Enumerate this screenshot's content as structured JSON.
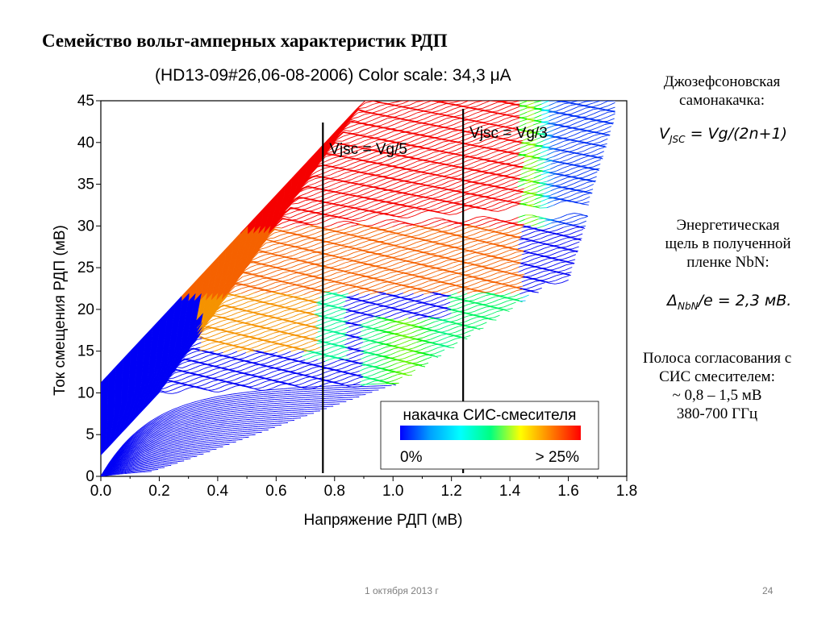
{
  "slide": {
    "title": "Семейство вольт-амперных характеристик РДП",
    "page_number": "24",
    "date": "1 октября 2013 г"
  },
  "sidebar": {
    "josephson_heading_line1": "Джозефсоновская",
    "josephson_heading_line2": "самонакачка:",
    "josephson_formula_main": "V",
    "josephson_formula_sub": "JSC",
    "josephson_formula_rest": " = Vg/(2n+1)",
    "gap_line1": "Энергетическая",
    "gap_line2": "щель в полученной",
    "gap_line3": "пленке NbN:",
    "gap_formula_main": "Δ",
    "gap_formula_sub": "NbN",
    "gap_formula_rest": "/e = 2,3 мВ.",
    "band_line1": "Полоса согласования с",
    "band_line2": "СИС смесителем:",
    "band_line3": "~ 0,8 – 1,5 мВ",
    "band_line4": "380-700 ГГц"
  },
  "chart_data": {
    "type": "line",
    "title": "(HD13-09#26,06-08-2006) Color scale: 34,3 μA",
    "xlabel": "Напряжение РДП (мВ)",
    "ylabel": "Ток смещения РДП (мВ)",
    "xlim": [
      0.0,
      1.8
    ],
    "ylim": [
      0,
      45
    ],
    "x_ticks": [
      "0.0",
      "0.2",
      "0.4",
      "0.6",
      "0.8",
      "1.0",
      "1.2",
      "1.4",
      "1.6",
      "1.8"
    ],
    "y_ticks": [
      "0",
      "5",
      "10",
      "15",
      "20",
      "25",
      "30",
      "35",
      "40",
      "45"
    ],
    "vertical_markers": [
      {
        "x": 0.76,
        "label": "Vjsc = Vg/5"
      },
      {
        "x": 1.24,
        "label": "Vjsc = Vg/3"
      }
    ],
    "colorbar": {
      "label": "накачка СИС-смесителя",
      "min_label": "0%",
      "max_label": "> 25%",
      "colors": [
        "#0000ff",
        "#00a0ff",
        "#00ffff",
        "#00ff80",
        "#ffff00",
        "#ff8000",
        "#ff0000"
      ]
    },
    "grid": false
  }
}
